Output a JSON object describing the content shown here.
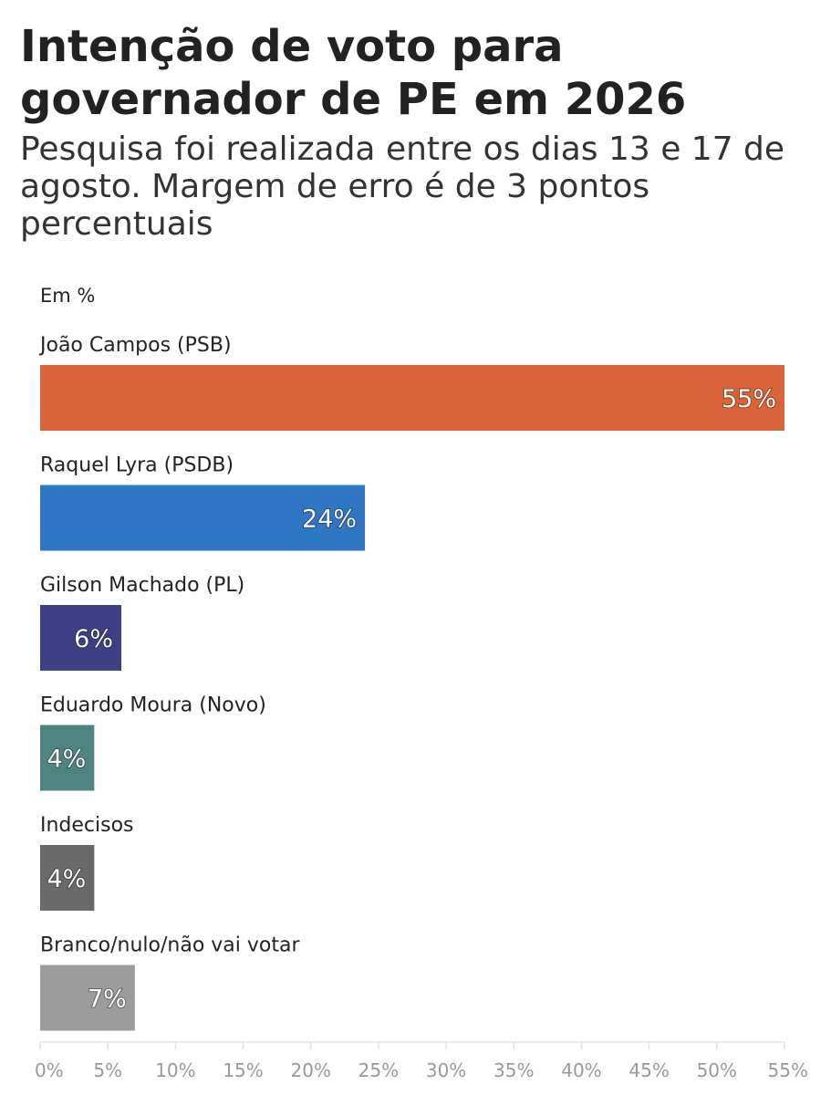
{
  "title": "Intenção de voto para governador de PE em 2026",
  "subtitle": "Pesquisa foi realizada entre os dias 13 e 17 de agosto. Margem de erro é de 3 pontos percentuais",
  "unit_label": "Em %",
  "chart_data": {
    "type": "bar",
    "orientation": "horizontal",
    "categories": [
      "João Campos (PSB)",
      "Raquel Lyra (PSDB)",
      "Gilson Machado (PL)",
      "Eduardo Moura (Novo)",
      "Indecisos",
      "Branco/nulo/não vai votar"
    ],
    "values": [
      55,
      24,
      6,
      4,
      4,
      7
    ],
    "value_labels": [
      "55%",
      "24%",
      "6%",
      "4%",
      "4%",
      "7%"
    ],
    "colors": [
      "#d9643a",
      "#2f76c4",
      "#3f3f85",
      "#4f8580",
      "#6a6a6a",
      "#9c9c9c"
    ],
    "xlim": [
      0,
      55
    ],
    "x_ticks": [
      0,
      5,
      10,
      15,
      20,
      25,
      30,
      35,
      40,
      45,
      50,
      55
    ],
    "x_tick_labels": [
      "0%",
      "5%",
      "10%",
      "15%",
      "20%",
      "25%",
      "30%",
      "35%",
      "40%",
      "45%",
      "50%",
      "55%"
    ],
    "grid": false,
    "legend": "none"
  }
}
